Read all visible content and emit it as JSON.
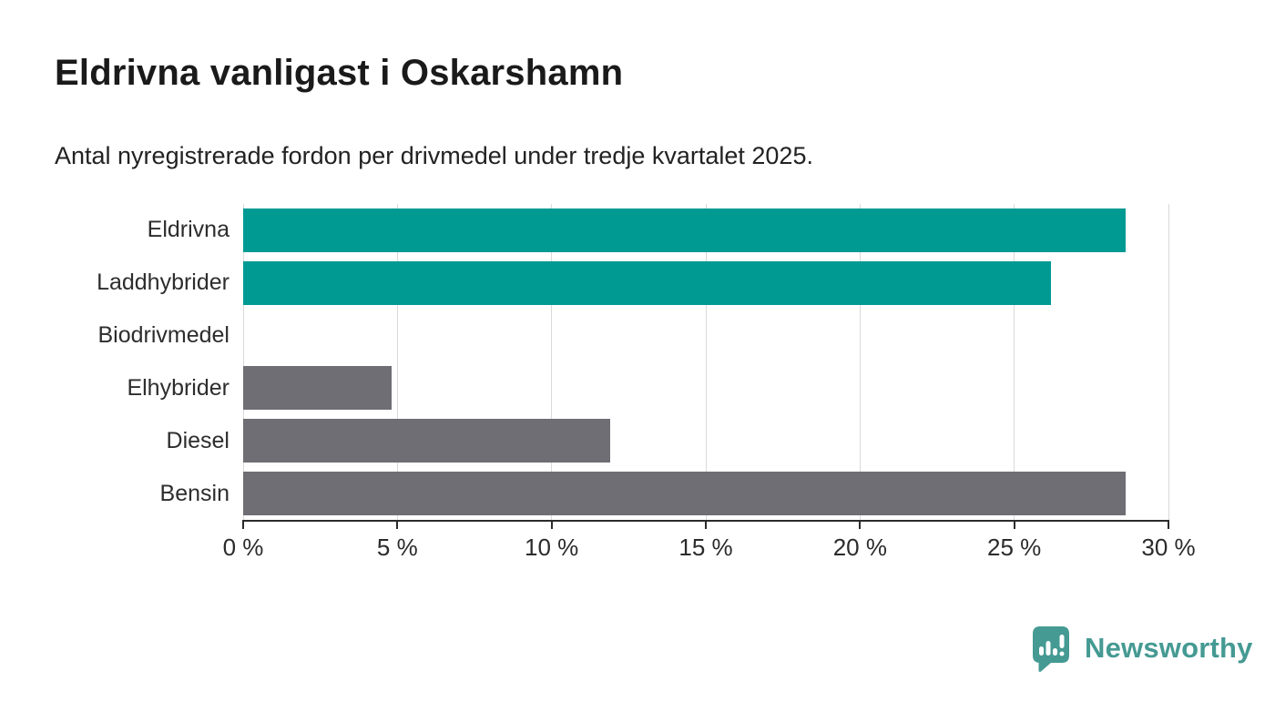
{
  "chart_data": {
    "type": "bar",
    "orientation": "horizontal",
    "title": "Eldrivna vanligast i Oskarshamn",
    "subtitle": "Antal nyregistrerade fordon per drivmedel under tredje kvartalet 2025.",
    "categories": [
      "Eldrivna",
      "Laddhybrider",
      "Biodrivmedel",
      "Elhybrider",
      "Diesel",
      "Bensin"
    ],
    "values": [
      28.6,
      26.2,
      0,
      4.8,
      11.9,
      28.6
    ],
    "bar_colors": [
      "#009a93",
      "#009a93",
      "#6e6e74",
      "#6e6e74",
      "#6e6e74",
      "#6e6e74"
    ],
    "xlim": [
      0,
      30
    ],
    "x_ticks": [
      {
        "value": 0,
        "label": "0 %"
      },
      {
        "value": 5,
        "label": "5 %"
      },
      {
        "value": 10,
        "label": "10 %"
      },
      {
        "value": 15,
        "label": "15 %"
      },
      {
        "value": 20,
        "label": "20 %"
      },
      {
        "value": 25,
        "label": "25 %"
      },
      {
        "value": 30,
        "label": "30 %"
      }
    ],
    "unit": "%",
    "grid": "vertical",
    "legend": "none"
  },
  "footer": {
    "brand": "Newsworthy",
    "brand_color": "#459a93",
    "icon": "newsworthy-speech-bubble-barchart-icon"
  },
  "colors": {
    "highlight_teal": "#009a93",
    "neutral_gray": "#6e6e74",
    "gridline": "#d9d9d9",
    "axis": "#2b2b2b",
    "title_text": "#1a1a1a",
    "body_text": "#2d2d2d"
  }
}
